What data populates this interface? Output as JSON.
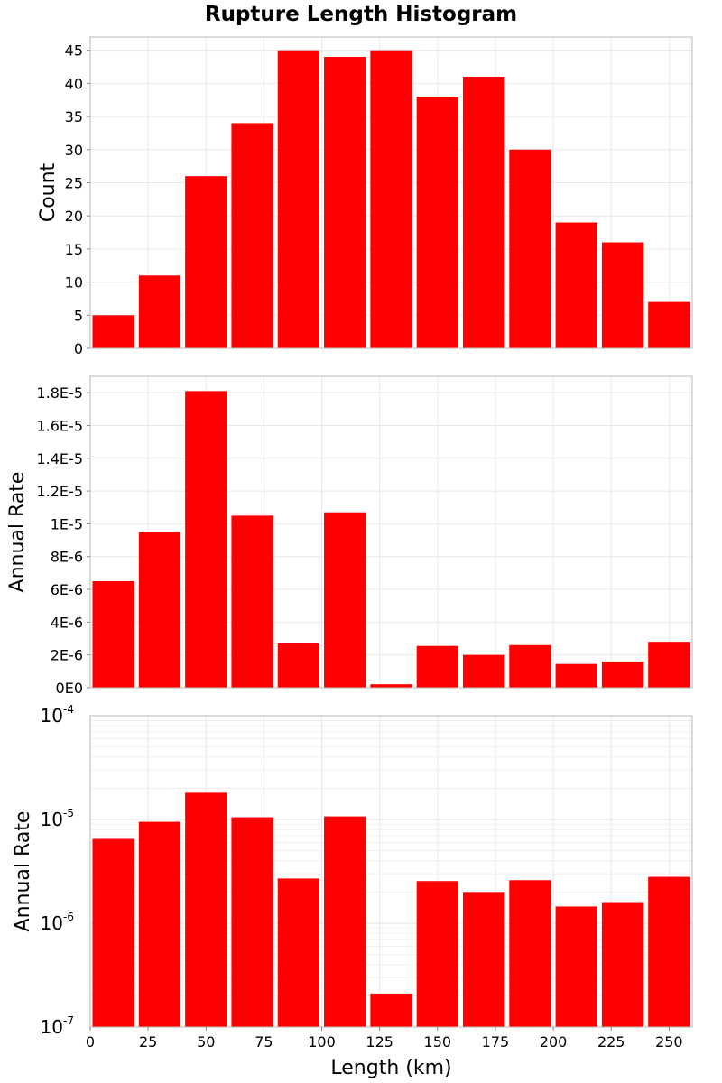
{
  "chart_data": [
    {
      "type": "bar",
      "title": "Rupture Length Histogram",
      "ylabel": "Count",
      "xlabel": "",
      "bin_width": 20,
      "x": [
        10,
        30,
        50,
        70,
        90,
        110,
        130,
        150,
        170,
        190,
        210,
        230,
        250
      ],
      "values": [
        5,
        11,
        26,
        34,
        45,
        44,
        45,
        38,
        41,
        30,
        19,
        16,
        7
      ],
      "xlim": [
        0,
        260
      ],
      "ylim": [
        0,
        47
      ],
      "yticks": [
        0,
        5,
        10,
        15,
        20,
        25,
        30,
        35,
        40,
        45
      ],
      "ytick_labels": [
        "0",
        "5",
        "10",
        "15",
        "20",
        "25",
        "30",
        "35",
        "40",
        "45"
      ],
      "yscale": "linear",
      "grid": true,
      "color": "#ff0000"
    },
    {
      "type": "bar",
      "title": "",
      "ylabel": "Annual Rate",
      "xlabel": "",
      "bin_width": 20,
      "x": [
        10,
        30,
        50,
        70,
        90,
        110,
        130,
        150,
        170,
        190,
        210,
        230,
        250
      ],
      "values": [
        6.5e-06,
        9.5e-06,
        1.81e-05,
        1.05e-05,
        2.7e-06,
        1.07e-05,
        2.1e-07,
        2.55e-06,
        2e-06,
        2.6e-06,
        1.45e-06,
        1.6e-06,
        2.8e-06
      ],
      "xlim": [
        0,
        260
      ],
      "ylim": [
        0,
        1.9e-05
      ],
      "yticks": [
        0,
        2e-06,
        4e-06,
        6e-06,
        8e-06,
        1e-05,
        1.2e-05,
        1.4e-05,
        1.6e-05,
        1.8e-05
      ],
      "ytick_labels": [
        "0E0",
        "2E-6",
        "4E-6",
        "6E-6",
        "8E-6",
        "1E-5",
        "1.2E-5",
        "1.4E-5",
        "1.6E-5",
        "1.8E-5"
      ],
      "yscale": "linear",
      "grid": true,
      "color": "#ff0000"
    },
    {
      "type": "bar",
      "title": "",
      "ylabel": "Annual Rate",
      "xlabel": "Length (km)",
      "bin_width": 20,
      "x": [
        10,
        30,
        50,
        70,
        90,
        110,
        130,
        150,
        170,
        190,
        210,
        230,
        250
      ],
      "values": [
        6.5e-06,
        9.5e-06,
        1.81e-05,
        1.05e-05,
        2.7e-06,
        1.07e-05,
        2.1e-07,
        2.55e-06,
        2e-06,
        2.6e-06,
        1.45e-06,
        1.6e-06,
        2.8e-06
      ],
      "xlim": [
        0,
        260
      ],
      "ylim": [
        1e-07,
        0.0001
      ],
      "yscale": "log",
      "ytick_labels": [
        {
          "value": 1e-07,
          "base": "10",
          "exp": "-7"
        },
        {
          "value": 1e-06,
          "base": "10",
          "exp": "-6"
        },
        {
          "value": 1e-05,
          "base": "10",
          "exp": "-5"
        },
        {
          "value": 0.0001,
          "base": "10",
          "exp": "-4"
        }
      ],
      "xticks": [
        0,
        25,
        50,
        75,
        100,
        125,
        150,
        175,
        200,
        225,
        250
      ],
      "xtick_labels": [
        "0",
        "25",
        "50",
        "75",
        "100",
        "125",
        "150",
        "175",
        "200",
        "225",
        "250"
      ],
      "grid": true,
      "color": "#ff0000"
    }
  ]
}
